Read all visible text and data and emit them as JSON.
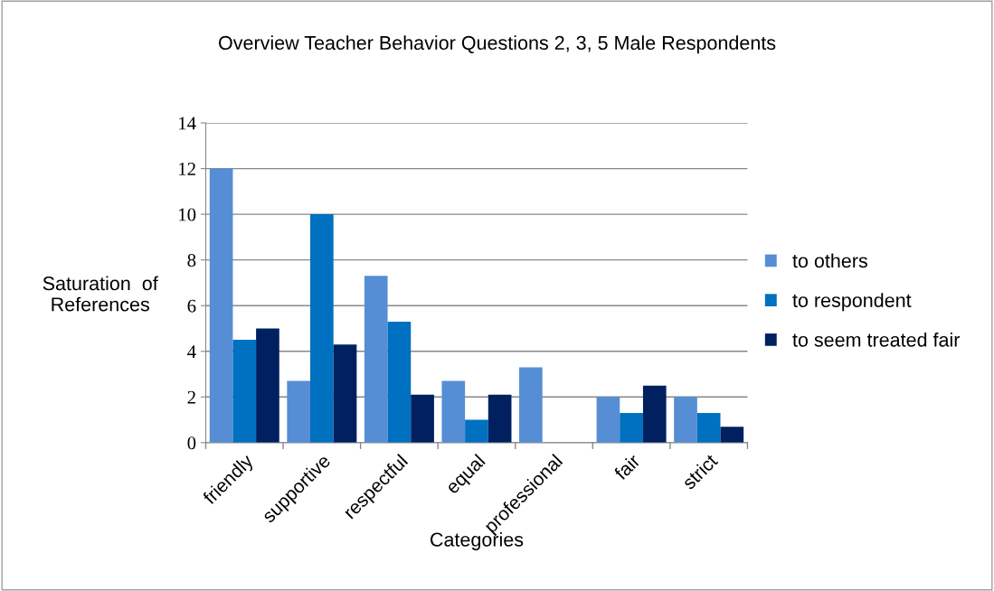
{
  "chart_data": {
    "type": "bar",
    "title": "Overview Teacher Behavior Questions 2, 3, 5 Male Respondents",
    "xlabel": "Categories",
    "ylabel": "Saturation  of\nReferences",
    "categories": [
      "friendly",
      "supportive",
      "respectful",
      "equal",
      "professional",
      "fair",
      "strict"
    ],
    "series": [
      {
        "name": "to others",
        "color": "#558ed5",
        "values": [
          12,
          2.7,
          7.3,
          2.7,
          3.3,
          2.0,
          2.0
        ]
      },
      {
        "name": "to respondent",
        "color": "#0070c0",
        "values": [
          4.5,
          10,
          5.3,
          1.0,
          0,
          1.3,
          1.3
        ]
      },
      {
        "name": "to seem treated fair",
        "color": "#002060",
        "values": [
          5.0,
          4.3,
          2.1,
          2.1,
          0,
          2.5,
          0.7
        ]
      }
    ],
    "ylim": [
      0,
      14
    ],
    "yticks": [
      0,
      2,
      4,
      6,
      8,
      10,
      12,
      14
    ],
    "grid": "y",
    "legend": "right"
  }
}
